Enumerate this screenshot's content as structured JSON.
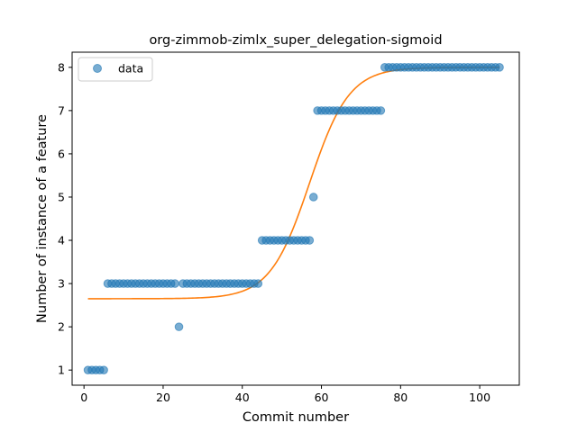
{
  "chart_data": {
    "type": "scatter",
    "title": "org-zimmob-zimlx_super_delegation-sigmoid",
    "xlabel": "Commit number",
    "ylabel": "Number of instance of a feature",
    "xlim": [
      -3,
      110
    ],
    "ylim": [
      0.65,
      8.35
    ],
    "xticks": [
      0,
      20,
      40,
      60,
      80,
      100
    ],
    "yticks": [
      1,
      2,
      3,
      4,
      5,
      6,
      7,
      8
    ],
    "grid": false,
    "legend_position": "top-left",
    "series": [
      {
        "name": "data",
        "kind": "points",
        "color": "#1f77b4",
        "points": [
          [
            1,
            1
          ],
          [
            2,
            1
          ],
          [
            3,
            1
          ],
          [
            4,
            1
          ],
          [
            5,
            1
          ],
          [
            6,
            3
          ],
          [
            7,
            3
          ],
          [
            8,
            3
          ],
          [
            9,
            3
          ],
          [
            10,
            3
          ],
          [
            11,
            3
          ],
          [
            12,
            3
          ],
          [
            13,
            3
          ],
          [
            14,
            3
          ],
          [
            15,
            3
          ],
          [
            16,
            3
          ],
          [
            17,
            3
          ],
          [
            18,
            3
          ],
          [
            19,
            3
          ],
          [
            20,
            3
          ],
          [
            21,
            3
          ],
          [
            22,
            3
          ],
          [
            23,
            3
          ],
          [
            24,
            2
          ],
          [
            25,
            3
          ],
          [
            26,
            3
          ],
          [
            27,
            3
          ],
          [
            28,
            3
          ],
          [
            29,
            3
          ],
          [
            30,
            3
          ],
          [
            31,
            3
          ],
          [
            32,
            3
          ],
          [
            33,
            3
          ],
          [
            34,
            3
          ],
          [
            35,
            3
          ],
          [
            36,
            3
          ],
          [
            37,
            3
          ],
          [
            38,
            3
          ],
          [
            39,
            3
          ],
          [
            40,
            3
          ],
          [
            41,
            3
          ],
          [
            42,
            3
          ],
          [
            43,
            3
          ],
          [
            44,
            3
          ],
          [
            45,
            4
          ],
          [
            46,
            4
          ],
          [
            47,
            4
          ],
          [
            48,
            4
          ],
          [
            49,
            4
          ],
          [
            50,
            4
          ],
          [
            51,
            4
          ],
          [
            52,
            4
          ],
          [
            53,
            4
          ],
          [
            54,
            4
          ],
          [
            55,
            4
          ],
          [
            56,
            4
          ],
          [
            57,
            4
          ],
          [
            58,
            5
          ],
          [
            59,
            7
          ],
          [
            60,
            7
          ],
          [
            61,
            7
          ],
          [
            62,
            7
          ],
          [
            63,
            7
          ],
          [
            64,
            7
          ],
          [
            65,
            7
          ],
          [
            66,
            7
          ],
          [
            67,
            7
          ],
          [
            68,
            7
          ],
          [
            69,
            7
          ],
          [
            70,
            7
          ],
          [
            71,
            7
          ],
          [
            72,
            7
          ],
          [
            73,
            7
          ],
          [
            74,
            7
          ],
          [
            75,
            7
          ],
          [
            76,
            8
          ],
          [
            77,
            8
          ],
          [
            78,
            8
          ],
          [
            79,
            8
          ],
          [
            80,
            8
          ],
          [
            81,
            8
          ],
          [
            82,
            8
          ],
          [
            83,
            8
          ],
          [
            84,
            8
          ],
          [
            85,
            8
          ],
          [
            86,
            8
          ],
          [
            87,
            8
          ],
          [
            88,
            8
          ],
          [
            89,
            8
          ],
          [
            90,
            8
          ],
          [
            91,
            8
          ],
          [
            92,
            8
          ],
          [
            93,
            8
          ],
          [
            94,
            8
          ],
          [
            95,
            8
          ],
          [
            96,
            8
          ],
          [
            97,
            8
          ],
          [
            98,
            8
          ],
          [
            99,
            8
          ],
          [
            100,
            8
          ],
          [
            101,
            8
          ],
          [
            102,
            8
          ],
          [
            103,
            8
          ],
          [
            104,
            8
          ],
          [
            105,
            8
          ]
        ]
      },
      {
        "kind": "line",
        "color": "#ff7f0e",
        "sigmoid": {
          "lower": 2.65,
          "upper": 8.0,
          "midpoint": 57.0,
          "rate": 0.2
        },
        "x_range": [
          1,
          105
        ]
      }
    ]
  }
}
